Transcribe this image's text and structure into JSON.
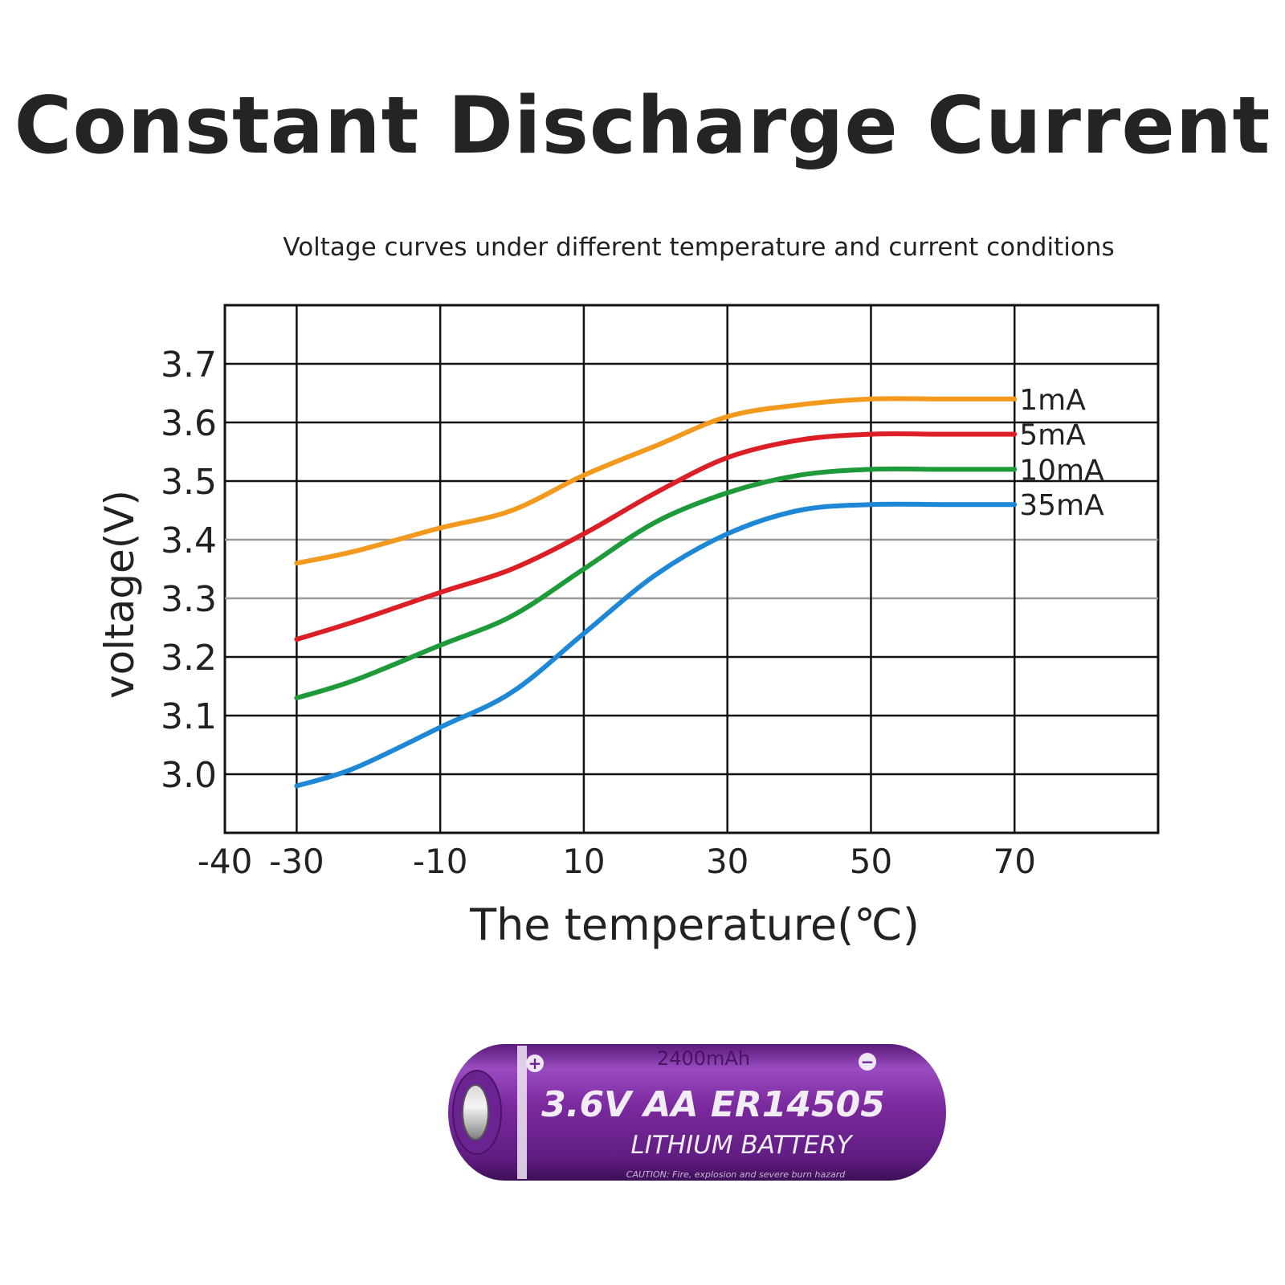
{
  "headline": "Constant Discharge Current",
  "chart_data": {
    "type": "line",
    "title": "Voltage curves under different temperature and current conditions",
    "xlabel": "The temperature(℃)",
    "ylabel": "voltage(V)",
    "xlim": [
      -40,
      90
    ],
    "ylim": [
      2.9,
      3.8
    ],
    "x_ticks": [
      "-40",
      "-30",
      "-10",
      "10",
      "30",
      "50",
      "70"
    ],
    "x_tick_values": [
      -40,
      -30,
      -10,
      10,
      30,
      50,
      70
    ],
    "y_ticks": [
      "3.0",
      "3.1",
      "3.2",
      "3.3",
      "3.4",
      "3.5",
      "3.6",
      "3.7"
    ],
    "y_tick_values": [
      3.0,
      3.1,
      3.2,
      3.3,
      3.4,
      3.5,
      3.6,
      3.7
    ],
    "grid": true,
    "legend": "right-inline",
    "x": [
      -30,
      -22,
      -10,
      0,
      10,
      20,
      30,
      40,
      50,
      60,
      70
    ],
    "series": [
      {
        "name": "1mA",
        "color": "#f39a1e",
        "values": [
          3.36,
          3.38,
          3.42,
          3.45,
          3.51,
          3.56,
          3.61,
          3.63,
          3.64,
          3.64,
          3.64
        ]
      },
      {
        "name": "5mA",
        "color": "#dc1f26",
        "values": [
          3.23,
          3.26,
          3.31,
          3.35,
          3.41,
          3.48,
          3.54,
          3.57,
          3.58,
          3.58,
          3.58
        ]
      },
      {
        "name": "10mA",
        "color": "#1f9a3a",
        "values": [
          3.13,
          3.16,
          3.22,
          3.27,
          3.35,
          3.43,
          3.48,
          3.51,
          3.52,
          3.52,
          3.52
        ]
      },
      {
        "name": "35mA",
        "color": "#1e88d6",
        "values": [
          2.98,
          3.01,
          3.08,
          3.14,
          3.24,
          3.34,
          3.41,
          3.45,
          3.46,
          3.46,
          3.46
        ]
      }
    ]
  },
  "battery": {
    "capacity": "2400mAh",
    "model": "3.6V  AA  ER14505",
    "type": "LITHIUM BATTERY",
    "caution": "CAUTION: Fire, explosion and severe burn hazard",
    "plus": "+",
    "minus": "−",
    "body_color": "#7b2a9e"
  }
}
